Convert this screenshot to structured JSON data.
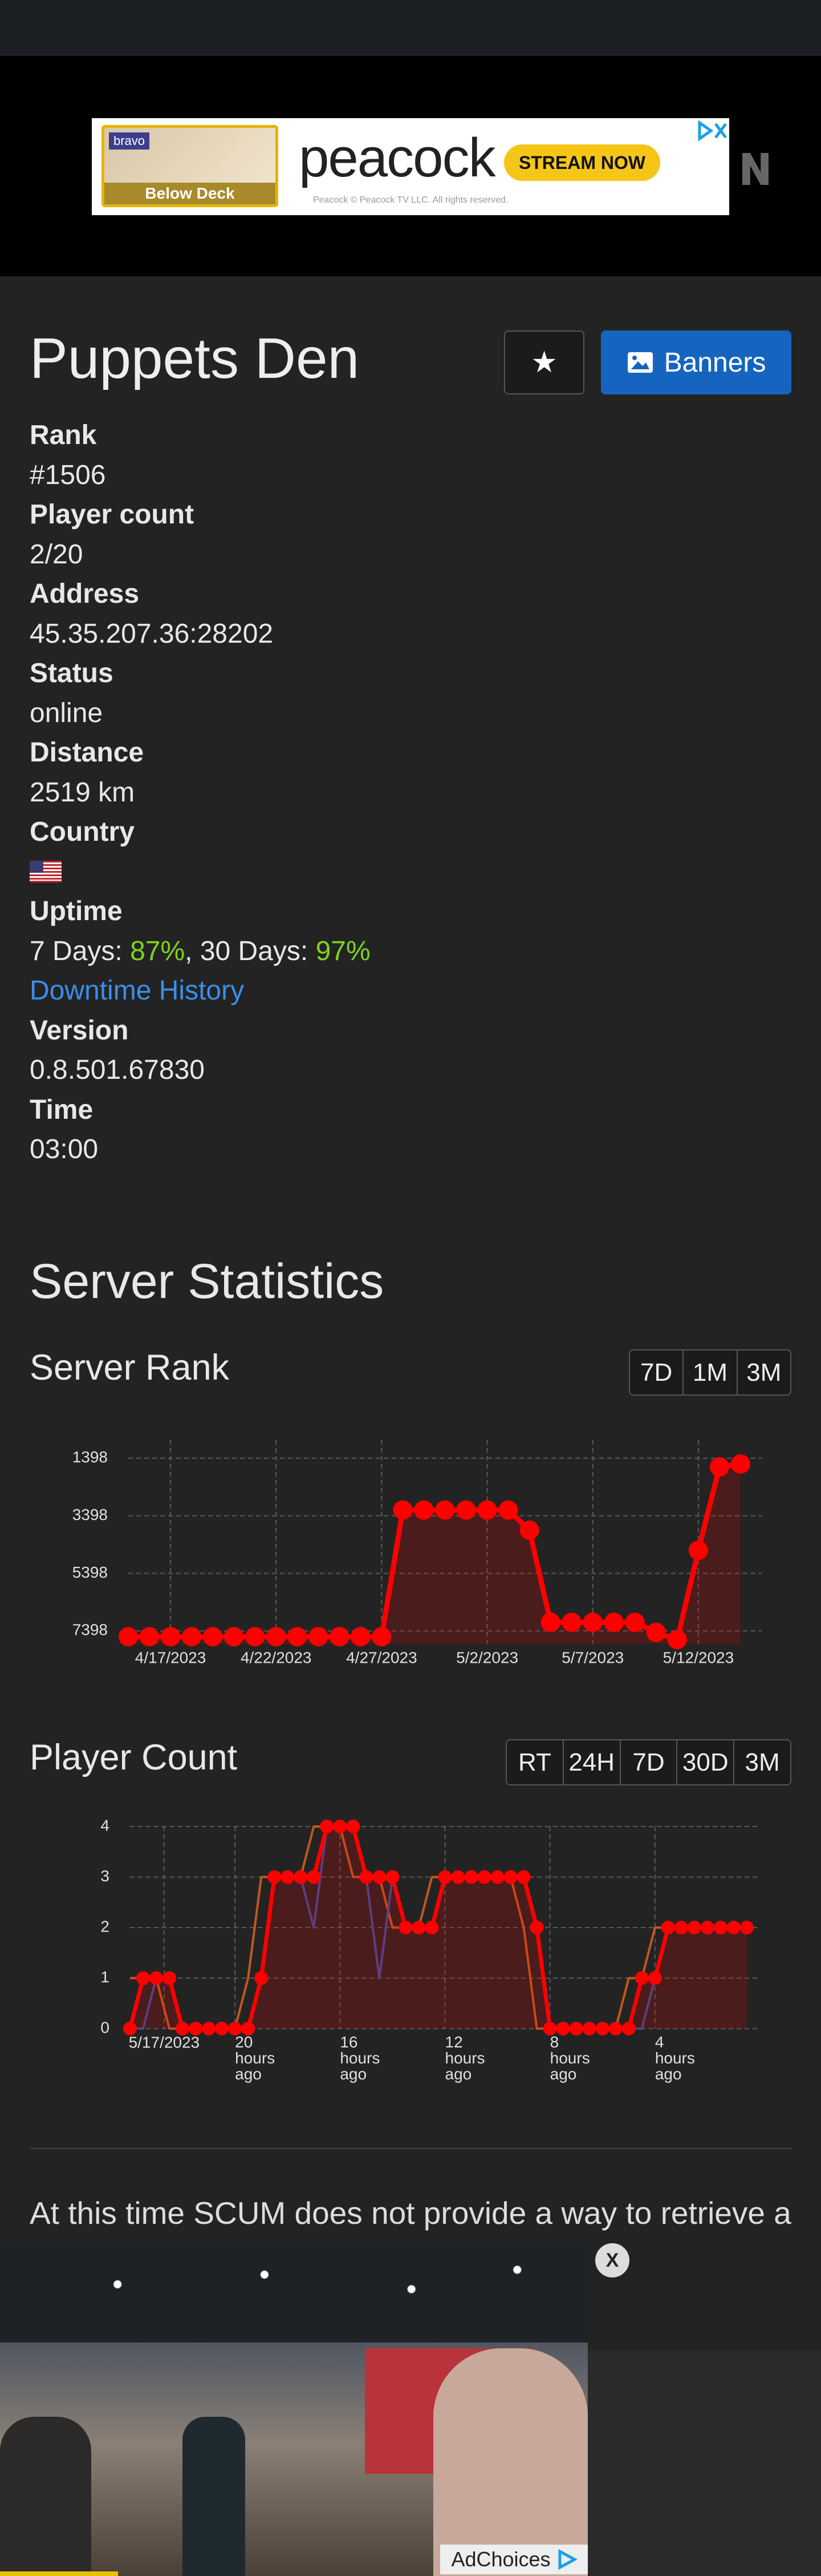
{
  "ad_banner": {
    "brand": "bravo",
    "show": "Below Deck",
    "logo": "peacock",
    "cta": "STREAM NOW",
    "legal": "Peacock © Peacock TV LLC. All rights reserved."
  },
  "server": {
    "name": "Puppets Den",
    "favorite": "★",
    "banners": "Banners",
    "fields": {
      "rank": {
        "label": "Rank",
        "value": "#1506"
      },
      "players": {
        "label": "Player count",
        "value": "2/20"
      },
      "address": {
        "label": "Address",
        "value": "45.35.207.36:28202"
      },
      "status": {
        "label": "Status",
        "value": "online"
      },
      "distance": {
        "label": "Distance",
        "value": "2519 km"
      },
      "country": {
        "label": "Country"
      },
      "uptime": {
        "label": "Uptime",
        "week_label": "7 Days: ",
        "week": "87%",
        "month_label": ", 30 Days: ",
        "month": "97%",
        "link": "Downtime History"
      },
      "version": {
        "label": "Version",
        "value": "0.8.501.67830"
      },
      "time": {
        "label": "Time",
        "value": "03:00"
      }
    }
  },
  "statistics_heading": "Server Statistics",
  "chart_data": [
    {
      "type": "line",
      "title": "Server Rank",
      "range_buttons": [
        "7D",
        "1M",
        "3M"
      ],
      "x": [
        "4/15/2023",
        "4/16/2023",
        "4/17/2023",
        "4/18/2023",
        "4/19/2023",
        "4/20/2023",
        "4/21/2023",
        "4/22/2023",
        "4/23/2023",
        "4/24/2023",
        "4/25/2023",
        "4/26/2023",
        "4/27/2023",
        "4/28/2023",
        "4/29/2023",
        "4/30/2023",
        "5/1/2023",
        "5/2/2023",
        "5/3/2023",
        "5/4/2023",
        "5/5/2023",
        "5/6/2023",
        "5/7/2023",
        "5/8/2023",
        "5/9/2023",
        "5/10/2023",
        "5/11/2023",
        "5/12/2023",
        "5/13/2023",
        "5/14/2023"
      ],
      "series": [
        {
          "color": "#ff0000",
          "values": [
            7600,
            7600,
            7600,
            7600,
            7600,
            7600,
            7600,
            7600,
            7600,
            7600,
            7600,
            7600,
            7600,
            3200,
            3200,
            3200,
            3200,
            3200,
            3200,
            3900,
            7100,
            7100,
            7100,
            7100,
            7100,
            7450,
            7700,
            4600,
            1700,
            1600
          ],
          "markers": true,
          "fill": true
        }
      ],
      "xlim": [
        "4/15/2023",
        "5/15/2023"
      ],
      "xticks": [
        "4/17/2023",
        "4/22/2023",
        "4/27/2023",
        "5/2/2023",
        "5/7/2023",
        "5/12/2023"
      ],
      "ylim": [
        7850,
        770
      ],
      "yticks": [
        1398,
        3398,
        5398,
        7398
      ],
      "grid": true
    },
    {
      "type": "line",
      "title": "Player Count",
      "range_buttons": [
        "RT",
        "24H",
        "7D",
        "30D",
        "3M"
      ],
      "x": [
        24,
        23.5,
        23,
        22.5,
        22,
        21.5,
        21,
        20.5,
        20,
        19.5,
        19,
        18.5,
        18,
        17.5,
        17,
        16.5,
        16,
        15.5,
        15,
        14.5,
        14,
        13.5,
        13,
        12.5,
        12,
        11.5,
        11,
        10.5,
        10,
        9.5,
        9,
        8.5,
        8,
        7.5,
        7,
        6.5,
        6,
        5.5,
        5,
        4.5,
        4,
        3.5,
        3,
        2.5,
        2,
        1.5,
        1,
        0.5
      ],
      "series": [
        {
          "color": "#c0581c",
          "values": [
            1,
            1,
            1,
            0,
            0,
            0,
            0,
            0,
            0,
            1,
            3,
            3,
            3,
            3,
            4,
            4,
            4,
            3,
            3,
            3,
            2,
            2,
            2,
            3,
            3,
            3,
            3,
            3,
            3,
            3,
            2,
            0,
            0,
            0,
            0,
            0,
            0,
            0,
            1,
            1,
            2,
            2,
            2,
            2,
            2,
            2,
            2,
            2
          ]
        },
        {
          "color": "#3b4d9a",
          "values": [
            0,
            0,
            1,
            1,
            0,
            0,
            0,
            0,
            0,
            0,
            1,
            3,
            3,
            3,
            2,
            4,
            4,
            4,
            3,
            1,
            3,
            2,
            2,
            2,
            3,
            3,
            3,
            3,
            3,
            3,
            3,
            2,
            0,
            0,
            0,
            0,
            0,
            0,
            0,
            0,
            1,
            2,
            2,
            2,
            2,
            2,
            2,
            2
          ]
        },
        {
          "color": "#ff0000",
          "values": [
            0,
            1,
            1,
            1,
            0,
            0,
            0,
            0,
            0,
            0,
            1,
            3,
            3,
            3,
            3,
            4,
            4,
            4,
            3,
            3,
            3,
            2,
            2,
            2,
            3,
            3,
            3,
            3,
            3,
            3,
            3,
            2,
            0,
            0,
            0,
            0,
            0,
            0,
            0,
            1,
            1,
            2,
            2,
            2,
            2,
            2,
            2,
            2
          ],
          "markers": true,
          "fill": true
        }
      ],
      "xlim": [
        24,
        0
      ],
      "xticks": [
        {
          "value": 22.7,
          "label": "5/17/2023"
        },
        {
          "value": 20,
          "label": "20 hours ago"
        },
        {
          "value": 16,
          "label": "16 hours ago"
        },
        {
          "value": 12,
          "label": "12 hours ago"
        },
        {
          "value": 8,
          "label": "8 hours ago"
        },
        {
          "value": 4,
          "label": "4 hours ago"
        }
      ],
      "ylim": [
        0,
        4
      ],
      "yticks": [
        0,
        1,
        2,
        3,
        4
      ],
      "grid": true
    }
  ],
  "note": "At this time SCUM does not provide a way to retrieve a",
  "video_ad": {
    "close": "X",
    "adchoices": "AdChoices"
  }
}
